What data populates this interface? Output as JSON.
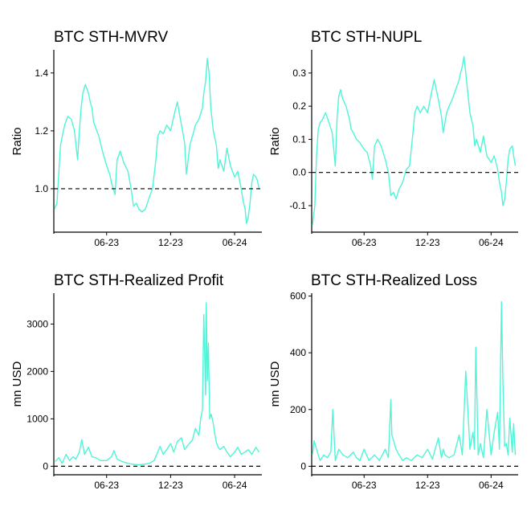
{
  "colors": {
    "series": "#4ff5d6",
    "axis": "#000000",
    "reference": "#000000",
    "background": "#ffffff"
  },
  "chart_data": [
    {
      "type": "line",
      "title": "BTC STH-MVRV",
      "ylabel": "Ratio",
      "xlabel": "",
      "x_ticks": [
        "06-23",
        "12-23",
        "06-24"
      ],
      "y_ticks": [
        "1.0",
        "1.2",
        "1.4"
      ],
      "ylim": [
        0.85,
        1.48
      ],
      "xlim": [
        "2023-01-01",
        "2024-08-18"
      ],
      "reference_line": {
        "y": 1.0,
        "style": "dashed"
      },
      "grid": false,
      "series": [
        {
          "x": [
            "2023-01-03",
            "2023-01-10",
            "2023-01-15",
            "2023-01-20",
            "2023-01-25",
            "2023-02-01",
            "2023-02-10",
            "2023-02-20",
            "2023-03-01",
            "2023-03-10",
            "2023-03-15",
            "2023-03-20",
            "2023-03-25",
            "2023-04-01",
            "2023-04-10",
            "2023-04-15",
            "2023-04-20",
            "2023-04-25",
            "2023-05-01",
            "2023-05-10",
            "2023-05-20",
            "2023-06-01",
            "2023-06-10",
            "2023-06-15",
            "2023-06-20",
            "2023-06-25",
            "2023-07-01",
            "2023-07-10",
            "2023-07-20",
            "2023-08-01",
            "2023-08-10",
            "2023-08-17",
            "2023-08-25",
            "2023-09-01",
            "2023-09-10",
            "2023-09-20",
            "2023-10-01",
            "2023-10-10",
            "2023-10-20",
            "2023-10-25",
            "2023-11-01",
            "2023-11-10",
            "2023-11-20",
            "2023-12-01",
            "2023-12-10",
            "2023-12-20",
            "2024-01-01",
            "2024-01-10",
            "2024-01-15",
            "2024-01-20",
            "2024-01-25",
            "2024-02-01",
            "2024-02-10",
            "2024-02-20",
            "2024-03-01",
            "2024-03-05",
            "2024-03-10",
            "2024-03-15",
            "2024-03-20",
            "2024-03-25",
            "2024-04-01",
            "2024-04-10",
            "2024-04-15",
            "2024-04-20",
            "2024-05-01",
            "2024-05-10",
            "2024-05-20",
            "2024-06-01",
            "2024-06-10",
            "2024-06-20",
            "2024-06-25",
            "2024-07-01",
            "2024-07-05",
            "2024-07-10",
            "2024-07-15",
            "2024-07-20",
            "2024-07-25",
            "2024-08-01",
            "2024-08-05",
            "2024-08-10"
          ],
          "values": [
            0.93,
            0.95,
            1.05,
            1.15,
            1.18,
            1.22,
            1.25,
            1.24,
            1.2,
            1.1,
            1.2,
            1.28,
            1.33,
            1.36,
            1.33,
            1.3,
            1.28,
            1.23,
            1.21,
            1.18,
            1.13,
            1.08,
            1.05,
            1.02,
            1.0,
            0.98,
            1.1,
            1.13,
            1.09,
            1.06,
            1.0,
            0.94,
            0.95,
            0.93,
            0.92,
            0.93,
            0.97,
            1.0,
            1.1,
            1.18,
            1.2,
            1.19,
            1.22,
            1.2,
            1.25,
            1.3,
            1.22,
            1.16,
            1.05,
            1.1,
            1.15,
            1.18,
            1.22,
            1.24,
            1.28,
            1.33,
            1.37,
            1.45,
            1.4,
            1.28,
            1.2,
            1.15,
            1.07,
            1.1,
            1.06,
            1.14,
            1.08,
            1.04,
            1.06,
            1.0,
            0.96,
            0.93,
            0.88,
            0.9,
            0.95,
            1.02,
            1.05,
            1.04,
            1.03,
            1.0
          ]
        }
      ]
    },
    {
      "type": "line",
      "title": "BTC STH-NUPL",
      "ylabel": "Ratio",
      "xlabel": "",
      "x_ticks": [
        "06-23",
        "12-23",
        "06-24"
      ],
      "y_ticks": [
        "-0.1",
        "0.0",
        "0.1",
        "0.2",
        "0.3"
      ],
      "ylim": [
        -0.18,
        0.37
      ],
      "xlim": [
        "2023-01-01",
        "2024-08-18"
      ],
      "reference_line": {
        "y": 0.0,
        "style": "dashed"
      },
      "grid": false,
      "series": [
        {
          "x": [
            "2023-01-03",
            "2023-01-10",
            "2023-01-15",
            "2023-01-20",
            "2023-01-25",
            "2023-02-01",
            "2023-02-10",
            "2023-02-20",
            "2023-03-01",
            "2023-03-10",
            "2023-03-15",
            "2023-03-20",
            "2023-03-25",
            "2023-04-01",
            "2023-04-10",
            "2023-04-15",
            "2023-04-20",
            "2023-04-25",
            "2023-05-01",
            "2023-05-10",
            "2023-05-20",
            "2023-06-01",
            "2023-06-10",
            "2023-06-15",
            "2023-06-20",
            "2023-06-25",
            "2023-07-01",
            "2023-07-10",
            "2023-07-20",
            "2023-08-01",
            "2023-08-10",
            "2023-08-17",
            "2023-08-25",
            "2023-09-01",
            "2023-09-10",
            "2023-09-20",
            "2023-10-01",
            "2023-10-10",
            "2023-10-20",
            "2023-10-25",
            "2023-11-01",
            "2023-11-10",
            "2023-11-20",
            "2023-12-01",
            "2023-12-10",
            "2023-12-20",
            "2024-01-01",
            "2024-01-10",
            "2024-01-15",
            "2024-01-20",
            "2024-01-25",
            "2024-02-01",
            "2024-02-10",
            "2024-02-20",
            "2024-03-01",
            "2024-03-05",
            "2024-03-10",
            "2024-03-15",
            "2024-03-20",
            "2024-03-25",
            "2024-04-01",
            "2024-04-10",
            "2024-04-15",
            "2024-04-20",
            "2024-05-01",
            "2024-05-10",
            "2024-05-20",
            "2024-06-01",
            "2024-06-10",
            "2024-06-20",
            "2024-06-25",
            "2024-07-01",
            "2024-07-05",
            "2024-07-10",
            "2024-07-15",
            "2024-07-20",
            "2024-07-25",
            "2024-08-01",
            "2024-08-05",
            "2024-08-10"
          ],
          "values": [
            -0.16,
            -0.1,
            0.05,
            0.13,
            0.15,
            0.16,
            0.18,
            0.15,
            0.12,
            0.02,
            0.16,
            0.23,
            0.25,
            0.22,
            0.2,
            0.18,
            0.16,
            0.13,
            0.12,
            0.1,
            0.09,
            0.07,
            0.06,
            0.04,
            0.02,
            -0.02,
            0.08,
            0.1,
            0.08,
            0.04,
            0.0,
            -0.07,
            -0.06,
            -0.08,
            -0.05,
            -0.03,
            0.01,
            0.02,
            0.12,
            0.18,
            0.2,
            0.18,
            0.2,
            0.18,
            0.23,
            0.28,
            0.22,
            0.17,
            0.12,
            0.15,
            0.18,
            0.2,
            0.22,
            0.25,
            0.28,
            0.3,
            0.32,
            0.35,
            0.3,
            0.25,
            0.18,
            0.14,
            0.08,
            0.1,
            0.06,
            0.11,
            0.05,
            0.03,
            0.05,
            0.01,
            -0.03,
            -0.06,
            -0.1,
            -0.08,
            -0.03,
            0.04,
            0.07,
            0.08,
            0.05,
            0.02
          ]
        }
      ]
    },
    {
      "type": "line",
      "title": "BTC STH-Realized Profit",
      "ylabel": "mn USD",
      "xlabel": "",
      "x_ticks": [
        "06-23",
        "12-23",
        "06-24"
      ],
      "y_ticks": [
        "0",
        "1000",
        "2000",
        "3000"
      ],
      "ylim": [
        -180,
        3650
      ],
      "xlim": [
        "2023-01-01",
        "2024-08-18"
      ],
      "reference_line": {
        "y": 0,
        "style": "dashed"
      },
      "grid": false,
      "series": [
        {
          "x": [
            "2023-01-05",
            "2023-01-15",
            "2023-01-25",
            "2023-02-05",
            "2023-02-15",
            "2023-02-25",
            "2023-03-05",
            "2023-03-15",
            "2023-03-22",
            "2023-03-30",
            "2023-04-10",
            "2023-04-20",
            "2023-05-01",
            "2023-05-15",
            "2023-06-01",
            "2023-06-15",
            "2023-06-22",
            "2023-07-01",
            "2023-07-15",
            "2023-08-01",
            "2023-08-15",
            "2023-09-01",
            "2023-09-15",
            "2023-10-01",
            "2023-10-15",
            "2023-10-25",
            "2023-11-01",
            "2023-11-10",
            "2023-11-20",
            "2023-12-01",
            "2023-12-10",
            "2023-12-20",
            "2024-01-01",
            "2024-01-10",
            "2024-01-20",
            "2024-02-01",
            "2024-02-10",
            "2024-02-20",
            "2024-02-25",
            "2024-03-01",
            "2024-03-05",
            "2024-03-10",
            "2024-03-12",
            "2024-03-15",
            "2024-03-18",
            "2024-03-22",
            "2024-03-26",
            "2024-04-01",
            "2024-04-05",
            "2024-04-10",
            "2024-04-15",
            "2024-04-20",
            "2024-05-01",
            "2024-05-10",
            "2024-05-20",
            "2024-06-01",
            "2024-06-10",
            "2024-06-20",
            "2024-07-01",
            "2024-07-10",
            "2024-07-20",
            "2024-08-01",
            "2024-08-10"
          ],
          "values": [
            100,
            180,
            60,
            250,
            120,
            200,
            150,
            300,
            560,
            250,
            400,
            200,
            180,
            120,
            120,
            200,
            330,
            150,
            100,
            60,
            40,
            30,
            40,
            60,
            120,
            300,
            420,
            250,
            350,
            480,
            300,
            520,
            600,
            350,
            450,
            550,
            800,
            650,
            1000,
            1200,
            3200,
            1500,
            3450,
            1800,
            2600,
            1000,
            1100,
            900,
            700,
            500,
            400,
            350,
            420,
            300,
            200,
            300,
            400,
            250,
            300,
            350,
            250,
            400,
            300
          ]
        }
      ]
    },
    {
      "type": "line",
      "title": "BTC STH-Realized Loss",
      "ylabel": "mn USD",
      "xlabel": "",
      "x_ticks": [
        "06-23",
        "12-23",
        "06-24"
      ],
      "y_ticks": [
        "0",
        "200",
        "400",
        "600"
      ],
      "ylim": [
        -30,
        610
      ],
      "xlim": [
        "2023-01-01",
        "2024-08-18"
      ],
      "reference_line": {
        "y": 0,
        "style": "dashed"
      },
      "grid": false,
      "series": [
        {
          "x": [
            "2023-01-03",
            "2023-01-08",
            "2023-01-15",
            "2023-01-25",
            "2023-02-05",
            "2023-02-15",
            "2023-02-25",
            "2023-03-03",
            "2023-03-10",
            "2023-03-20",
            "2023-04-01",
            "2023-04-15",
            "2023-05-01",
            "2023-05-10",
            "2023-05-20",
            "2023-06-01",
            "2023-06-15",
            "2023-07-01",
            "2023-07-15",
            "2023-08-01",
            "2023-08-10",
            "2023-08-17",
            "2023-08-20",
            "2023-08-25",
            "2023-09-01",
            "2023-09-10",
            "2023-09-20",
            "2023-10-01",
            "2023-10-15",
            "2023-11-01",
            "2023-11-15",
            "2023-12-01",
            "2023-12-15",
            "2024-01-01",
            "2024-01-10",
            "2024-01-15",
            "2024-01-20",
            "2024-02-01",
            "2024-02-15",
            "2024-03-01",
            "2024-03-10",
            "2024-03-20",
            "2024-04-01",
            "2024-04-10",
            "2024-04-14",
            "2024-04-18",
            "2024-04-25",
            "2024-05-01",
            "2024-05-10",
            "2024-05-20",
            "2024-06-01",
            "2024-06-10",
            "2024-06-20",
            "2024-06-25",
            "2024-07-01",
            "2024-07-05",
            "2024-07-10",
            "2024-07-15",
            "2024-07-20",
            "2024-07-25",
            "2024-08-01",
            "2024-08-05",
            "2024-08-10"
          ],
          "values": [
            40,
            90,
            60,
            20,
            40,
            30,
            50,
            200,
            20,
            60,
            40,
            30,
            50,
            30,
            20,
            60,
            20,
            40,
            20,
            60,
            30,
            235,
            110,
            90,
            60,
            40,
            20,
            30,
            20,
            40,
            30,
            60,
            25,
            100,
            30,
            60,
            40,
            30,
            40,
            110,
            40,
            335,
            60,
            120,
            60,
            420,
            40,
            80,
            30,
            200,
            40,
            120,
            190,
            60,
            580,
            300,
            70,
            80,
            40,
            170,
            50,
            150,
            40
          ]
        }
      ]
    }
  ]
}
